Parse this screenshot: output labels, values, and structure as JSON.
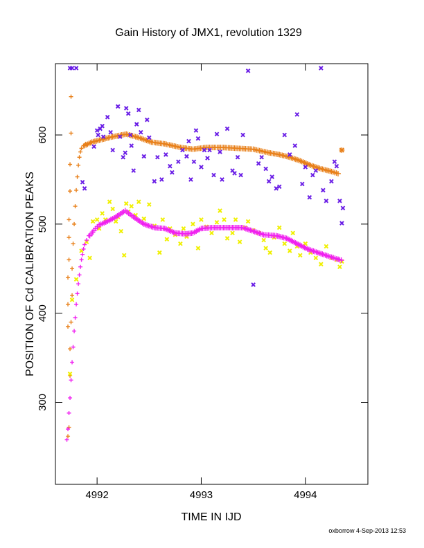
{
  "chart_data": {
    "type": "scatter",
    "title": "Gain History of JMX1, revolution 1329",
    "xlabel": "TIME IN IJD",
    "ylabel": "POSITION OF Cd CALIBRATION PEAKS",
    "xlim": [
      4991.6,
      4994.6
    ],
    "ylim": [
      208,
      680
    ],
    "x_ticks": [
      4992,
      4993,
      4994
    ],
    "y_ticks": [
      300,
      400,
      500,
      600
    ],
    "grid": false,
    "legend": "none",
    "footer": "oxborrow  4-Sep-2013 12:53",
    "series": [
      {
        "marker": "plus",
        "color": "#e8801a",
        "points": [
          [
            4991.72,
            385
          ],
          [
            4991.72,
            410
          ],
          [
            4991.72,
            440
          ],
          [
            4991.73,
            460
          ],
          [
            4991.73,
            485
          ],
          [
            4991.73,
            505
          ],
          [
            4991.74,
            537
          ],
          [
            4991.74,
            567
          ],
          [
            4991.75,
            602
          ],
          [
            4991.75,
            643
          ],
          [
            4991.72,
            262
          ],
          [
            4991.73,
            272
          ],
          [
            4991.74,
            330
          ],
          [
            4991.74,
            360
          ],
          [
            4991.75,
            390
          ],
          [
            4991.76,
            420
          ],
          [
            4991.76,
            450
          ],
          [
            4991.77,
            478
          ],
          [
            4991.78,
            500
          ],
          [
            4991.79,
            520
          ],
          [
            4991.8,
            538
          ],
          [
            4991.81,
            553
          ],
          [
            4991.82,
            566
          ],
          [
            4991.83,
            575
          ],
          [
            4991.84,
            581
          ],
          [
            4991.85,
            585
          ],
          [
            4991.87,
            588
          ],
          [
            4991.89,
            590
          ]
        ],
        "trend": [
          [
            4991.88,
            588
          ],
          [
            4991.95,
            592
          ],
          [
            4992.05,
            595
          ],
          [
            4992.15,
            598
          ],
          [
            4992.28,
            601
          ],
          [
            4992.4,
            597
          ],
          [
            4992.52,
            592
          ],
          [
            4992.65,
            590
          ],
          [
            4992.8,
            586
          ],
          [
            4992.92,
            584
          ],
          [
            4993.05,
            586
          ],
          [
            4993.2,
            586
          ],
          [
            4993.35,
            585
          ],
          [
            4993.5,
            584
          ],
          [
            4993.65,
            580
          ],
          [
            4993.75,
            578
          ],
          [
            4993.85,
            575
          ],
          [
            4993.95,
            571
          ],
          [
            4994.05,
            566
          ],
          [
            4994.15,
            562
          ],
          [
            4994.25,
            559
          ],
          [
            4994.33,
            556
          ]
        ],
        "end_point": [
          4994.35,
          583
        ]
      },
      {
        "marker": "cross",
        "color": "#6a1ee6",
        "points": [
          [
            4991.74,
            675
          ],
          [
            4991.76,
            675
          ],
          [
            4991.8,
            675
          ],
          [
            4991.86,
            547
          ],
          [
            4991.88,
            540
          ],
          [
            4991.97,
            587
          ],
          [
            4992.0,
            605
          ],
          [
            4992.01,
            600
          ],
          [
            4992.03,
            607
          ],
          [
            4992.05,
            610
          ],
          [
            4992.06,
            598
          ],
          [
            4992.1,
            620
          ],
          [
            4992.13,
            603
          ],
          [
            4992.15,
            583
          ],
          [
            4992.2,
            632
          ],
          [
            4992.22,
            598
          ],
          [
            4992.25,
            575
          ],
          [
            4992.27,
            580
          ],
          [
            4992.28,
            630
          ],
          [
            4992.3,
            624
          ],
          [
            4992.32,
            600
          ],
          [
            4992.33,
            588
          ],
          [
            4992.35,
            560
          ],
          [
            4992.38,
            612
          ],
          [
            4992.4,
            628
          ],
          [
            4992.42,
            603
          ],
          [
            4992.45,
            576
          ],
          [
            4992.48,
            617
          ],
          [
            4992.5,
            597
          ],
          [
            4992.55,
            548
          ],
          [
            4992.58,
            575
          ],
          [
            4992.62,
            550
          ],
          [
            4992.66,
            578
          ],
          [
            4992.7,
            565
          ],
          [
            4992.72,
            558
          ],
          [
            4992.78,
            570
          ],
          [
            4992.82,
            583
          ],
          [
            4992.86,
            576
          ],
          [
            4992.88,
            593
          ],
          [
            4992.9,
            550
          ],
          [
            4992.93,
            570
          ],
          [
            4992.95,
            605
          ],
          [
            4992.97,
            596
          ],
          [
            4993.0,
            564
          ],
          [
            4993.03,
            583
          ],
          [
            4993.06,
            574
          ],
          [
            4993.08,
            583
          ],
          [
            4993.12,
            555
          ],
          [
            4993.15,
            601
          ],
          [
            4993.18,
            581
          ],
          [
            4993.2,
            550
          ],
          [
            4993.25,
            607
          ],
          [
            4993.3,
            560
          ],
          [
            4993.32,
            557
          ],
          [
            4993.35,
            575
          ],
          [
            4993.38,
            555
          ],
          [
            4993.4,
            600
          ],
          [
            4993.45,
            672
          ],
          [
            4993.5,
            432
          ],
          [
            4993.55,
            568
          ],
          [
            4993.58,
            575
          ],
          [
            4993.62,
            562
          ],
          [
            4993.65,
            548
          ],
          [
            4993.68,
            553
          ],
          [
            4993.72,
            540
          ],
          [
            4993.75,
            542
          ],
          [
            4993.8,
            600
          ],
          [
            4993.85,
            578
          ],
          [
            4993.9,
            588
          ],
          [
            4993.92,
            623
          ],
          [
            4993.97,
            545
          ],
          [
            4994.0,
            564
          ],
          [
            4994.04,
            530
          ],
          [
            4994.07,
            555
          ],
          [
            4994.1,
            560
          ],
          [
            4994.15,
            675
          ],
          [
            4994.17,
            538
          ],
          [
            4994.2,
            526
          ],
          [
            4994.25,
            548
          ],
          [
            4994.28,
            570
          ],
          [
            4994.3,
            565
          ],
          [
            4994.33,
            526
          ],
          [
            4994.35,
            501
          ],
          [
            4994.36,
            518
          ]
        ]
      },
      {
        "marker": "cross",
        "color": "#f0f000",
        "points": [
          [
            4991.74,
            332
          ],
          [
            4991.76,
            415
          ],
          [
            4991.8,
            438
          ],
          [
            4991.85,
            470
          ],
          [
            4991.9,
            480
          ],
          [
            4991.93,
            462
          ],
          [
            4991.96,
            503
          ],
          [
            4992.0,
            505
          ],
          [
            4992.02,
            495
          ],
          [
            4992.05,
            512
          ],
          [
            4992.08,
            505
          ],
          [
            4992.12,
            525
          ],
          [
            4992.15,
            517
          ],
          [
            4992.18,
            503
          ],
          [
            4992.2,
            508
          ],
          [
            4992.23,
            492
          ],
          [
            4992.26,
            465
          ],
          [
            4992.28,
            523
          ],
          [
            4992.3,
            514
          ],
          [
            4992.33,
            520
          ],
          [
            4992.37,
            510
          ],
          [
            4992.4,
            525
          ],
          [
            4992.45,
            506
          ],
          [
            4992.5,
            522
          ],
          [
            4992.55,
            498
          ],
          [
            4992.6,
            468
          ],
          [
            4992.63,
            505
          ],
          [
            4992.67,
            483
          ],
          [
            4992.7,
            495
          ],
          [
            4992.75,
            488
          ],
          [
            4992.8,
            478
          ],
          [
            4992.83,
            495
          ],
          [
            4992.86,
            486
          ],
          [
            4992.92,
            500
          ],
          [
            4992.97,
            473
          ],
          [
            4993.0,
            505
          ],
          [
            4993.05,
            497
          ],
          [
            4993.1,
            490
          ],
          [
            4993.15,
            502
          ],
          [
            4993.18,
            515
          ],
          [
            4993.22,
            505
          ],
          [
            4993.25,
            484
          ],
          [
            4993.3,
            490
          ],
          [
            4993.33,
            505
          ],
          [
            4993.37,
            480
          ],
          [
            4993.42,
            496
          ],
          [
            4993.45,
            503
          ],
          [
            4993.5,
            493
          ],
          [
            4993.55,
            490
          ],
          [
            4993.6,
            482
          ],
          [
            4993.62,
            473
          ],
          [
            4993.66,
            468
          ],
          [
            4993.7,
            485
          ],
          [
            4993.75,
            496
          ],
          [
            4993.8,
            478
          ],
          [
            4993.85,
            470
          ],
          [
            4993.88,
            490
          ],
          [
            4993.92,
            475
          ],
          [
            4993.95,
            465
          ],
          [
            4994.0,
            478
          ],
          [
            4994.05,
            468
          ],
          [
            4994.1,
            462
          ],
          [
            4994.15,
            455
          ],
          [
            4994.2,
            475
          ],
          [
            4994.25,
            462
          ],
          [
            4994.3,
            460
          ],
          [
            4994.33,
            452
          ],
          [
            4994.35,
            458
          ]
        ]
      },
      {
        "marker": "plus",
        "color": "#f020f0",
        "points": [
          [
            4991.71,
            258
          ],
          [
            4991.72,
            270
          ],
          [
            4991.73,
            288
          ],
          [
            4991.74,
            305
          ],
          [
            4991.75,
            325
          ],
          [
            4991.76,
            345
          ],
          [
            4991.77,
            362
          ],
          [
            4991.78,
            380
          ],
          [
            4991.79,
            395
          ],
          [
            4991.8,
            410
          ],
          [
            4991.81,
            422
          ],
          [
            4991.82,
            433
          ],
          [
            4991.83,
            443
          ],
          [
            4991.84,
            452
          ],
          [
            4991.85,
            460
          ],
          [
            4991.86,
            466
          ],
          [
            4991.87,
            472
          ],
          [
            4991.88,
            477
          ],
          [
            4991.9,
            482
          ],
          [
            4991.92,
            487
          ]
        ],
        "trend": [
          [
            4991.93,
            487
          ],
          [
            4991.97,
            493
          ],
          [
            4992.02,
            499
          ],
          [
            4992.1,
            503
          ],
          [
            4992.18,
            508
          ],
          [
            4992.27,
            515
          ],
          [
            4992.35,
            508
          ],
          [
            4992.45,
            500
          ],
          [
            4992.55,
            496
          ],
          [
            4992.65,
            495
          ],
          [
            4992.75,
            490
          ],
          [
            4992.85,
            489
          ],
          [
            4992.92,
            490
          ],
          [
            4993.0,
            495
          ],
          [
            4993.1,
            496
          ],
          [
            4993.2,
            496
          ],
          [
            4993.3,
            496
          ],
          [
            4993.4,
            496
          ],
          [
            4993.5,
            492
          ],
          [
            4993.6,
            488
          ],
          [
            4993.72,
            487
          ],
          [
            4993.82,
            484
          ],
          [
            4993.92,
            478
          ],
          [
            4994.02,
            472
          ],
          [
            4994.12,
            468
          ],
          [
            4994.22,
            464
          ],
          [
            4994.3,
            461
          ],
          [
            4994.36,
            459
          ]
        ]
      }
    ]
  }
}
